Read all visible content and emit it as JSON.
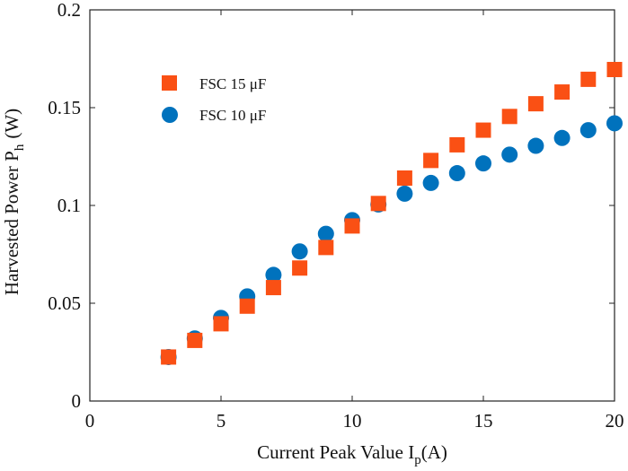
{
  "chart_data": {
    "type": "scatter",
    "title": "",
    "xlabel": "Current Peak Value I",
    "xlabel_sub": "p",
    "xlabel_unit": "(A)",
    "ylabel": "Harvested Power P",
    "ylabel_sub": "h",
    "ylabel_unit": "(W)",
    "xlim": [
      0,
      20
    ],
    "ylim": [
      0,
      0.2
    ],
    "xticks": [
      0,
      5,
      10,
      15,
      20
    ],
    "xtick_labels": [
      "0",
      "5",
      "10",
      "15",
      "20"
    ],
    "yticks": [
      0,
      0.05,
      0.1,
      0.15,
      0.2
    ],
    "ytick_labels": [
      "0",
      "0.05",
      "0.1",
      "0.15",
      "0.2"
    ],
    "grid": false,
    "legend_position": "top-left",
    "series": [
      {
        "name": "FSC 15 μF",
        "marker": "square",
        "color": "#fa5014",
        "x": [
          3,
          4,
          5,
          6,
          7,
          8,
          9,
          10,
          11,
          12,
          13,
          14,
          15,
          16,
          17,
          18,
          19,
          20
        ],
        "y": [
          0.0225,
          0.031,
          0.0395,
          0.0485,
          0.058,
          0.068,
          0.0785,
          0.0895,
          0.101,
          0.114,
          0.123,
          0.131,
          0.1385,
          0.1455,
          0.152,
          0.158,
          0.1645,
          0.1695
        ]
      },
      {
        "name": "FSC 10 μF",
        "marker": "circle",
        "color": "#0072bd",
        "x": [
          3,
          4,
          5,
          6,
          7,
          8,
          9,
          10,
          11,
          12,
          13,
          14,
          15,
          16,
          17,
          18,
          19,
          20
        ],
        "y": [
          0.0225,
          0.032,
          0.0425,
          0.0535,
          0.0645,
          0.0765,
          0.0855,
          0.0925,
          0.1005,
          0.106,
          0.1115,
          0.1165,
          0.1215,
          0.126,
          0.1305,
          0.1345,
          0.1385,
          0.142
        ]
      }
    ]
  }
}
